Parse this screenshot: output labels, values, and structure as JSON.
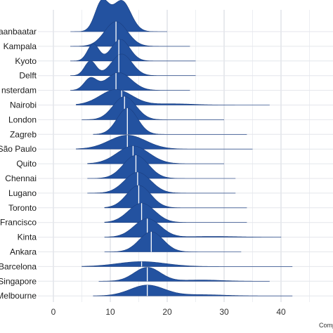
{
  "chart_data": {
    "type": "ridgeline",
    "title": "",
    "xlabel": "Comp",
    "ylabel": "",
    "xlim": [
      -2,
      48
    ],
    "x_ticks": [
      0,
      10,
      20,
      30,
      40
    ],
    "grid": true,
    "fill_color": "#2352a0",
    "median_line_color": "#ffffff",
    "categories": [
      "Ulaanbaatar",
      "Kampala",
      "Kyoto",
      "Delft",
      "Amsterdam",
      "Nairobi",
      "London",
      "Zagreb",
      "São Paulo",
      "Quito",
      "Chennai",
      "Lugano",
      "Toronto",
      "San Francisco",
      "Kinta",
      "Ankara",
      "Barcelona",
      "Singapore",
      "Melbourne"
    ],
    "category_labels_shown": [
      "aanbaatar",
      "Kampala",
      "Kyoto",
      "Delft",
      "nsterdam",
      "Nairobi",
      "London",
      "Zagreb",
      "São Paulo",
      "Quito",
      "Chennai",
      "Lugano",
      "Toronto",
      "Francisco",
      "Kinta",
      "Ankara",
      "Barcelona",
      "Singapore",
      "Melbourne"
    ],
    "series": [
      {
        "name": "Ulaanbaatar",
        "median": null,
        "min": 3,
        "max": 20,
        "peaks": [
          [
            8.5,
            1.2,
            1.9
          ],
          [
            12,
            1.6,
            2.0
          ]
        ]
      },
      {
        "name": "Kampala",
        "median": 11,
        "min": 3,
        "max": 24,
        "peaks": [
          [
            11,
            2.0,
            1.6
          ]
        ]
      },
      {
        "name": "Kyoto",
        "median": 11.5,
        "min": 3,
        "max": 25,
        "peaks": [
          [
            7,
            1.0,
            1.1
          ],
          [
            11.8,
            1.6,
            1.4
          ]
        ]
      },
      {
        "name": "Delft",
        "median": 11.5,
        "min": 3,
        "max": 25,
        "peaks": [
          [
            6.5,
            1.0,
            0.95
          ],
          [
            12,
            1.8,
            1.4
          ]
        ]
      },
      {
        "name": "Amsterdam",
        "median": 11,
        "min": 3,
        "max": 24,
        "peaks": [
          [
            6.5,
            1.1,
            0.75
          ],
          [
            11.5,
            2.2,
            1.15
          ]
        ]
      },
      {
        "name": "Nairobi",
        "median": 12,
        "min": 4,
        "max": 38,
        "peaks": [
          [
            11,
            2.8,
            1.0
          ],
          [
            21,
            3.5,
            0.08
          ]
        ]
      },
      {
        "name": "London",
        "median": 12.5,
        "min": 5,
        "max": 30,
        "peaks": [
          [
            12.5,
            2.0,
            1.5
          ]
        ]
      },
      {
        "name": "Zagreb",
        "median": 13,
        "min": 7,
        "max": 34,
        "peaks": [
          [
            13,
            1.8,
            1.7
          ]
        ]
      },
      {
        "name": "São Paulo",
        "median": 13,
        "min": 4,
        "max": 35,
        "peaks": [
          [
            13,
            3.2,
            0.9
          ]
        ]
      },
      {
        "name": "Quito",
        "median": 14,
        "min": 6,
        "max": 30,
        "peaks": [
          [
            14,
            2.8,
            1.15
          ]
        ]
      },
      {
        "name": "Chennai",
        "median": 14.5,
        "min": 6,
        "max": 32,
        "peaks": [
          [
            14.5,
            2.2,
            1.5
          ]
        ]
      },
      {
        "name": "Lugano",
        "median": 14.8,
        "min": 6,
        "max": 32,
        "peaks": [
          [
            14.8,
            2.3,
            1.35
          ]
        ]
      },
      {
        "name": "Toronto",
        "median": 15,
        "min": 9,
        "max": 34,
        "peaks": [
          [
            15,
            2.1,
            1.45
          ]
        ]
      },
      {
        "name": "San Francisco",
        "median": 15.5,
        "min": 9,
        "max": 34,
        "peaks": [
          [
            15.5,
            2.3,
            1.25
          ]
        ]
      },
      {
        "name": "Kinta",
        "median": 16.5,
        "min": 9,
        "max": 40,
        "peaks": [
          [
            16.5,
            2.3,
            1.2
          ],
          [
            28,
            4.0,
            0.05
          ]
        ]
      },
      {
        "name": "Ankara",
        "median": 17.2,
        "min": 9,
        "max": 33,
        "peaks": [
          [
            17.2,
            2.1,
            1.3
          ]
        ]
      },
      {
        "name": "Barcelona",
        "median": 15.5,
        "min": 5,
        "max": 42,
        "peaks": [
          [
            15.5,
            4.2,
            0.32
          ]
        ]
      },
      {
        "name": "Singapore",
        "median": 16.5,
        "min": 8,
        "max": 38,
        "peaks": [
          [
            16.5,
            2.3,
            0.9
          ],
          [
            26,
            3.5,
            0.08
          ]
        ]
      },
      {
        "name": "Melbourne",
        "median": 16.5,
        "min": 7,
        "max": 42,
        "peaks": [
          [
            16.5,
            3.0,
            0.7
          ],
          [
            26,
            4.0,
            0.08
          ]
        ]
      }
    ]
  }
}
